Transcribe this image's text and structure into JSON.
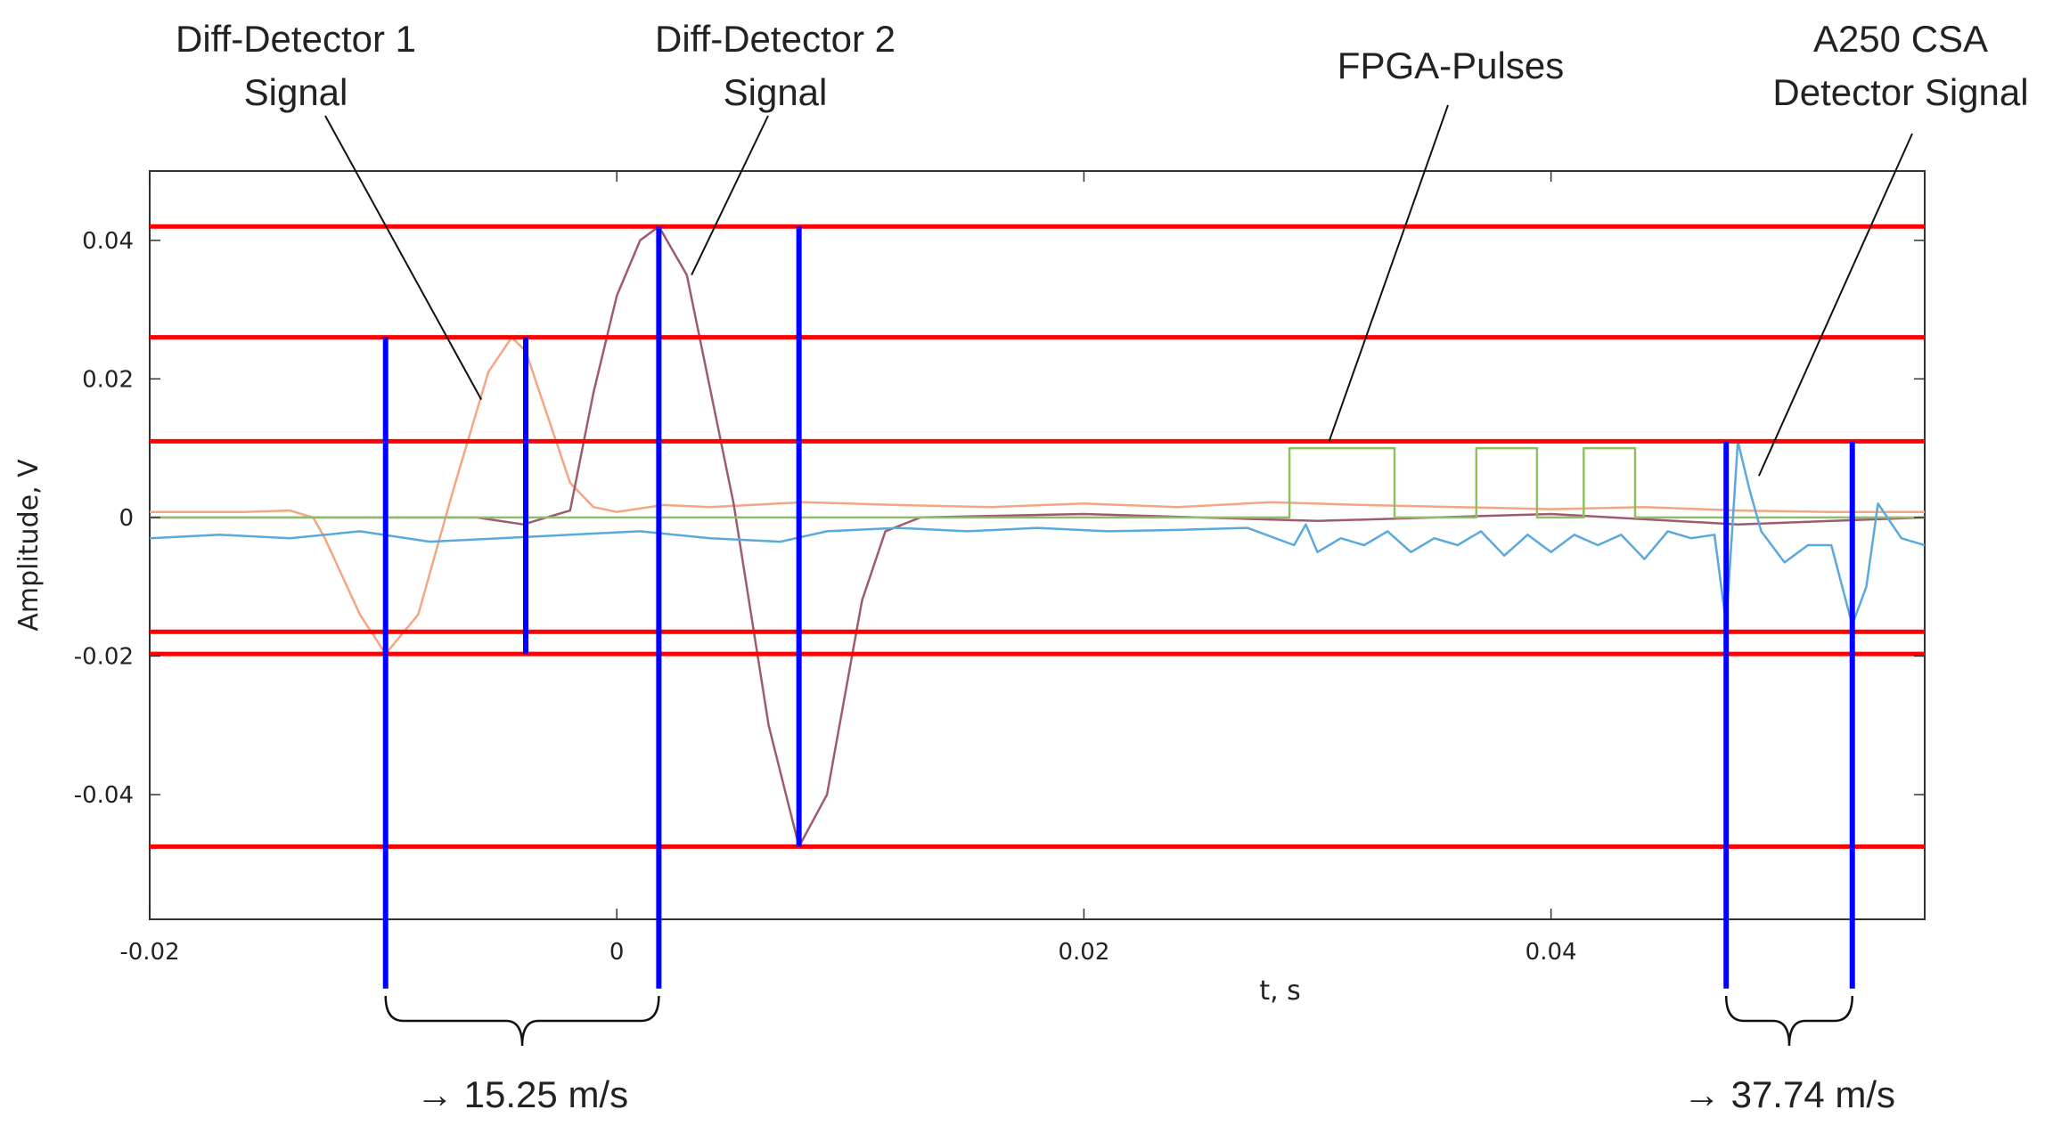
{
  "chart_data": {
    "type": "line",
    "title": "",
    "xlabel": "t, s",
    "ylabel": "Amplitude, V",
    "xlim": [
      -0.02,
      0.056
    ],
    "ylim": [
      -0.058,
      0.05
    ],
    "xticks": [
      -0.02,
      0,
      0.02,
      0.04
    ],
    "xtick_labels": [
      "-0.02",
      "0",
      "0.02",
      "0.04"
    ],
    "yticks": [
      0.04,
      0.02,
      0,
      -0.02,
      -0.04
    ],
    "ytick_labels": [
      "0.04",
      "0.02",
      "0",
      "-0.02",
      "-0.04"
    ],
    "threshold_lines": [
      0.042,
      0.026,
      0.011,
      -0.0165,
      -0.0197,
      -0.0475
    ],
    "marker_lines": [
      {
        "x": -0.0099,
        "ymin": -0.068,
        "ymax": 0.026
      },
      {
        "x": -0.0039,
        "ymin": -0.0197,
        "ymax": 0.026
      },
      {
        "x": 0.0018,
        "ymin": -0.068,
        "ymax": 0.042
      },
      {
        "x": 0.0078,
        "ymin": -0.0475,
        "ymax": 0.042
      },
      {
        "x": 0.0475,
        "ymin": -0.068,
        "ymax": 0.011
      },
      {
        "x": 0.0529,
        "ymin": -0.068,
        "ymax": 0.011
      }
    ],
    "series": [
      {
        "name": "Diff-Detector 1 Signal",
        "color": "#f4a582",
        "x": [
          -0.02,
          -0.016,
          -0.014,
          -0.013,
          -0.0125,
          -0.011,
          -0.0099,
          -0.0085,
          -0.007,
          -0.0055,
          -0.0045,
          -0.0039,
          -0.003,
          -0.002,
          -0.001,
          0,
          0.002,
          0.004,
          0.008,
          0.012,
          0.016,
          0.02,
          0.024,
          0.028,
          0.032,
          0.036,
          0.04,
          0.044,
          0.048,
          0.052,
          0.056
        ],
        "y": [
          0.0008,
          0.0008,
          0.001,
          0.0,
          -0.003,
          -0.014,
          -0.0197,
          -0.014,
          0.004,
          0.021,
          0.026,
          0.024,
          0.015,
          0.005,
          0.0015,
          0.0008,
          0.0018,
          0.0015,
          0.0022,
          0.0018,
          0.0015,
          0.002,
          0.0015,
          0.0022,
          0.0018,
          0.0015,
          0.0012,
          0.0015,
          0.001,
          0.0008,
          0.0008
        ]
      },
      {
        "name": "Diff-Detector 2 Signal",
        "color": "#9e5a6e",
        "x": [
          -0.02,
          -0.01,
          -0.006,
          -0.004,
          -0.002,
          -0.001,
          0.0,
          0.001,
          0.0018,
          0.003,
          0.005,
          0.0065,
          0.0078,
          0.009,
          0.0105,
          0.0115,
          0.013,
          0.02,
          0.03,
          0.04,
          0.048,
          0.056
        ],
        "y": [
          0.0,
          0.0,
          0.0,
          -0.001,
          0.001,
          0.018,
          0.032,
          0.04,
          0.042,
          0.035,
          0.002,
          -0.03,
          -0.0475,
          -0.04,
          -0.012,
          -0.002,
          0.0,
          0.0005,
          -0.0005,
          0.0005,
          -0.001,
          0.0
        ]
      },
      {
        "name": "FPGA-Pulses",
        "color": "#8fc060",
        "x": [
          -0.02,
          0.0288,
          0.0288,
          0.0333,
          0.0333,
          0.0368,
          0.0368,
          0.0394,
          0.0394,
          0.0414,
          0.0414,
          0.0436,
          0.0436,
          0.056
        ],
        "y": [
          0.0,
          0.0,
          0.01,
          0.01,
          0.0,
          0.0,
          0.01,
          0.01,
          0.0,
          0.0,
          0.01,
          0.01,
          0.0,
          0.0
        ]
      },
      {
        "name": "A250 CSA Detector Signal",
        "color": "#5aa9dc",
        "x": [
          -0.02,
          -0.017,
          -0.014,
          -0.011,
          -0.008,
          -0.005,
          -0.002,
          0.001,
          0.004,
          0.007,
          0.009,
          0.012,
          0.015,
          0.018,
          0.021,
          0.024,
          0.027,
          0.029,
          0.0295,
          0.03,
          0.031,
          0.032,
          0.033,
          0.034,
          0.035,
          0.036,
          0.037,
          0.038,
          0.039,
          0.04,
          0.041,
          0.042,
          0.043,
          0.044,
          0.045,
          0.046,
          0.047,
          0.0475,
          0.048,
          0.0485,
          0.049,
          0.05,
          0.051,
          0.052,
          0.0529,
          0.0535,
          0.054,
          0.055,
          0.056
        ],
        "y": [
          -0.003,
          -0.0025,
          -0.003,
          -0.002,
          -0.0035,
          -0.003,
          -0.0025,
          -0.002,
          -0.003,
          -0.0035,
          -0.002,
          -0.0015,
          -0.002,
          -0.0015,
          -0.002,
          -0.0018,
          -0.0015,
          -0.004,
          -0.001,
          -0.005,
          -0.003,
          -0.004,
          -0.002,
          -0.005,
          -0.003,
          -0.004,
          -0.002,
          -0.0055,
          -0.0025,
          -0.005,
          -0.0025,
          -0.004,
          -0.0025,
          -0.006,
          -0.002,
          -0.003,
          -0.0025,
          -0.0155,
          0.011,
          0.004,
          -0.002,
          -0.0065,
          -0.004,
          -0.004,
          -0.0155,
          -0.01,
          0.002,
          -0.003,
          -0.004
        ]
      }
    ],
    "annotations": [
      {
        "id": "dd1",
        "lines": [
          "Diff-Detector 1",
          "Signal"
        ],
        "point_x": -0.0058,
        "point_y": 0.017
      },
      {
        "id": "dd2",
        "lines": [
          "Diff-Detector 2",
          "Signal"
        ],
        "point_x": 0.0032,
        "point_y": 0.035
      },
      {
        "id": "fpga",
        "lines": [
          "FPGA-Pulses"
        ],
        "point_x": 0.0305,
        "point_y": 0.011
      },
      {
        "id": "a250",
        "lines": [
          "A250 CSA",
          "Detector Signal"
        ],
        "point_x": 0.0489,
        "point_y": 0.006
      }
    ],
    "speed_labels": [
      {
        "text": "→ 15.25 m/s",
        "x_from": -0.0099,
        "x_to": 0.0018
      },
      {
        "text": "→ 37.74 m/s",
        "x_from": 0.0475,
        "x_to": 0.0529
      }
    ]
  },
  "colors": {
    "threshold": "#ff0000",
    "marker": "#0000ff",
    "axis": "#333333",
    "bracket": "#111111"
  }
}
